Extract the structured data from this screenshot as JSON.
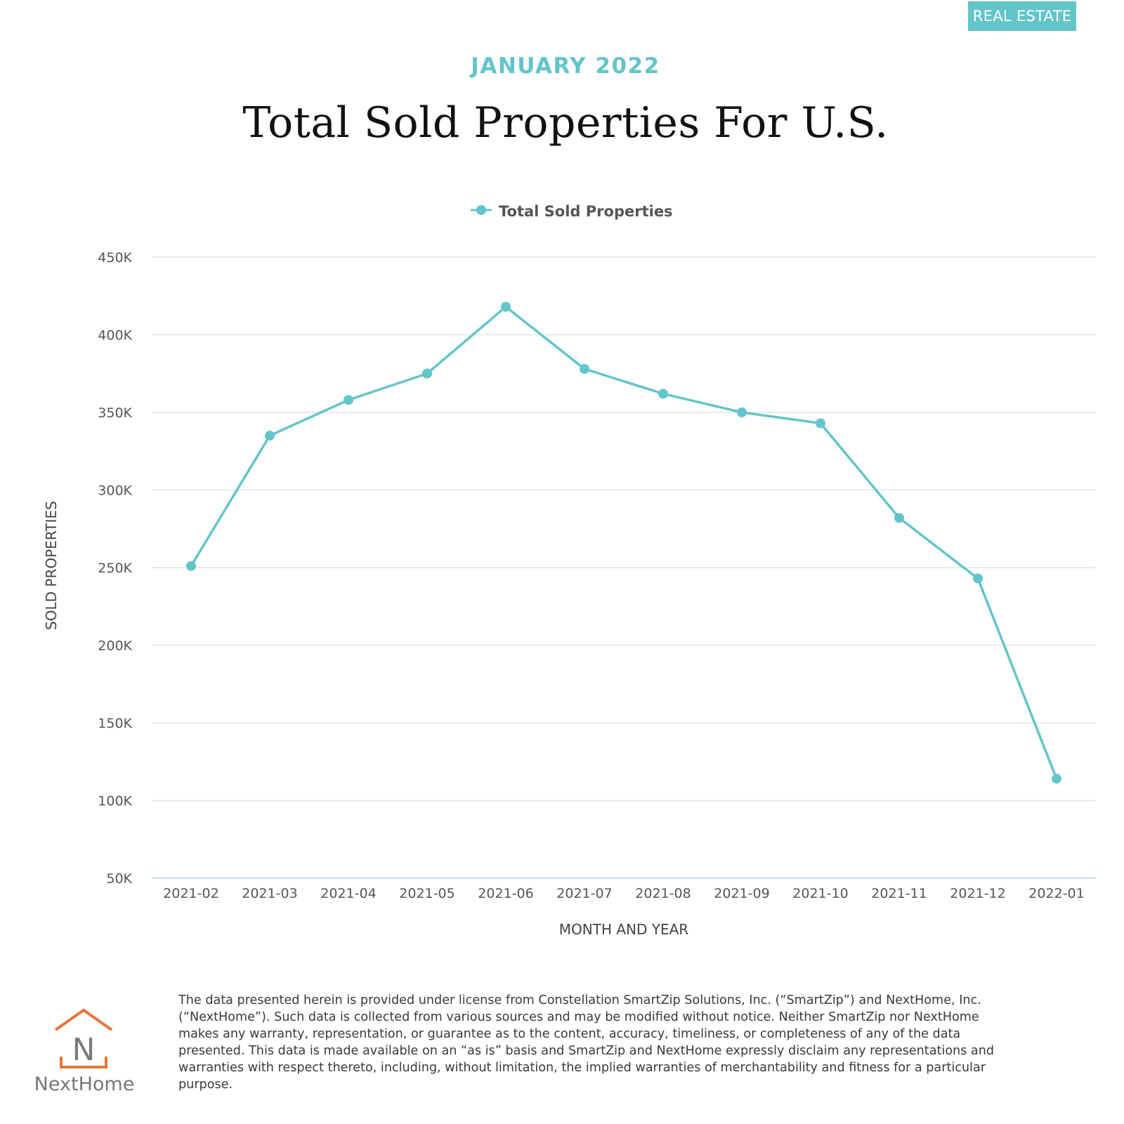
{
  "badge": "REAL ESTATE",
  "header": {
    "subtitle": "JANUARY 2022",
    "title": "Total Sold Properties For U.S."
  },
  "colors": {
    "accent": "#62c5ca",
    "logo_orange": "#e8743b",
    "grid": "#e3e3e3",
    "axis_text": "#555555"
  },
  "chart_data": {
    "type": "line",
    "title": "Total Sold Properties For U.S.",
    "xlabel": "MONTH AND YEAR",
    "ylabel": "SOLD PROPERTIES",
    "legend": "top-center",
    "grid": true,
    "ylim": [
      50000,
      450000
    ],
    "yticks": [
      50000,
      100000,
      150000,
      200000,
      250000,
      300000,
      350000,
      400000,
      450000
    ],
    "ytick_labels": [
      "50K",
      "100K",
      "150K",
      "200K",
      "250K",
      "300K",
      "350K",
      "400K",
      "450K"
    ],
    "categories": [
      "2021-02",
      "2021-03",
      "2021-04",
      "2021-05",
      "2021-06",
      "2021-07",
      "2021-08",
      "2021-09",
      "2021-10",
      "2021-11",
      "2021-12",
      "2022-01"
    ],
    "series": [
      {
        "name": "Total Sold Properties",
        "values": [
          251000,
          335000,
          358000,
          375000,
          418000,
          378000,
          362000,
          350000,
          343000,
          282000,
          243000,
          114000
        ]
      }
    ]
  },
  "footer": {
    "disclaimer": "The data presented herein is provided under license from Constellation SmartZip Solutions, Inc. (“SmartZip”) and NextHome, Inc. (“NextHome”). Such data is collected from various sources and may be modified without notice. Neither SmartZip nor NextHome makes any warranty, representation, or guarantee as to the content, accuracy, timeliness, or completeness of any of the data presented. This data is made available on an “as is” basis and SmartZip and NextHome expressly disclaim any representations and warranties with respect thereto, including, without limitation, the implied warranties of merchantability and fitness for a particular purpose.",
    "logo_letter": "N",
    "logo_text": "NextHome"
  }
}
